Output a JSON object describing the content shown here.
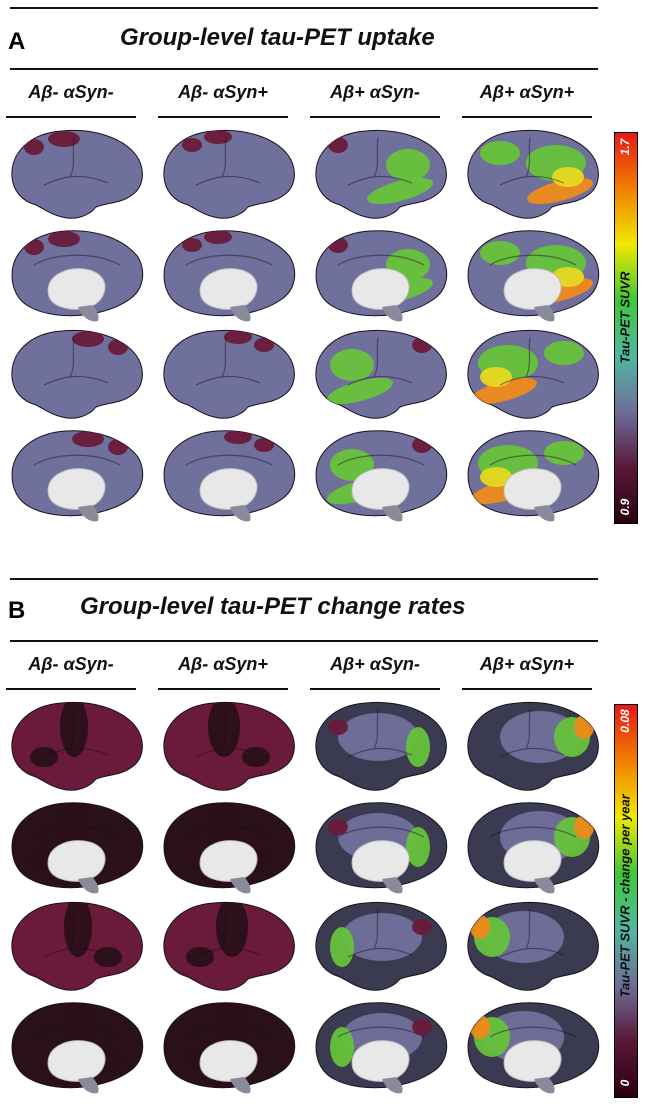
{
  "panels": [
    {
      "letter": "A",
      "title": "Group-level tau-PET uptake",
      "columns": [
        "Aβ- αSyn-",
        "Aβ- αSyn+",
        "Aβ+ αSyn-",
        "Aβ+ αSyn+"
      ],
      "colorbar": {
        "max_label": "1.7",
        "min_label": "0.9",
        "title": "Tau-PET SUVR"
      }
    },
    {
      "letter": "B",
      "title": "Group-level tau-PET change rates",
      "columns": [
        "Aβ- αSyn-",
        "Aβ- αSyn+",
        "Aβ+ αSyn-",
        "Aβ+ αSyn+"
      ],
      "colorbar": {
        "max_label": "0.08",
        "min_label": "0",
        "title": "Tau-PET SUVR - change per year"
      }
    }
  ],
  "colors": {
    "colormap": [
      "#2a0010",
      "#5a1838",
      "#6e6e9a",
      "#50b8a0",
      "#3ec83a",
      "#f0e800",
      "#f08000",
      "#e81818"
    ],
    "cortex_low": "#3a3a50",
    "cortex_mid": "#70709c",
    "cortex_high_green": "#66c23a",
    "cortex_yellow": "#e6d820",
    "cortex_orange": "#ee8a1a",
    "dark_red": "#6a1a3a",
    "very_dark": "#2a1018",
    "subcortex": "#e8e8e8"
  }
}
